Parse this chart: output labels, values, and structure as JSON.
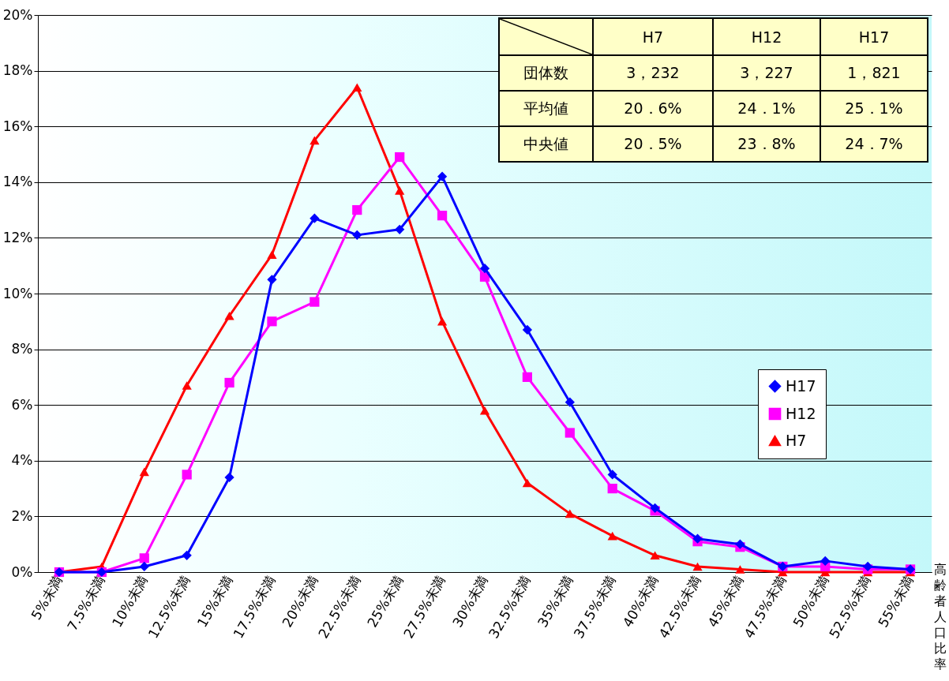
{
  "chart_data": {
    "type": "line",
    "xlabel": "高齢者人口比率",
    "categories": [
      "5%未満",
      "7.5%未満",
      "10%未満",
      "12.5%未満",
      "15%未満",
      "17.5%未満",
      "20%未満",
      "22.5%未満",
      "25%未満",
      "27.5%未満",
      "30%未満",
      "32.5%未満",
      "35%未満",
      "37.5%未満",
      "40%未満",
      "42.5%未満",
      "45%未満",
      "47.5%未満",
      "50%未満",
      "52.5%未満",
      "55%未満"
    ],
    "series": [
      {
        "name": "H17",
        "color": "#0000ff",
        "marker": "diamond",
        "values": [
          0,
          0,
          0.2,
          0.6,
          3.4,
          10.5,
          12.7,
          12.1,
          12.3,
          14.2,
          10.9,
          8.7,
          6.1,
          3.5,
          2.3,
          1.2,
          1.0,
          0.2,
          0.4,
          0.2,
          0.1
        ]
      },
      {
        "name": "H12",
        "color": "#ff00ff",
        "marker": "square",
        "values": [
          0,
          0,
          0.5,
          3.5,
          6.8,
          9.0,
          9.7,
          13.0,
          14.9,
          12.8,
          10.6,
          7.0,
          5.0,
          3.0,
          2.2,
          1.1,
          0.9,
          0.2,
          0.2,
          0.1,
          0.1
        ]
      },
      {
        "name": "H7",
        "color": "#ff0000",
        "marker": "triangle",
        "values": [
          0,
          0.2,
          3.6,
          6.7,
          9.2,
          11.4,
          15.5,
          17.4,
          13.7,
          9.0,
          5.8,
          3.2,
          2.1,
          1.3,
          0.6,
          0.2,
          0.1,
          0,
          0,
          0,
          0
        ]
      }
    ],
    "ylim": [
      0,
      20
    ],
    "yticks": [
      {
        "value": 0,
        "label": "0%"
      },
      {
        "value": 2,
        "label": "2%"
      },
      {
        "value": 4,
        "label": "4%"
      },
      {
        "value": 6,
        "label": "6%"
      },
      {
        "value": 8,
        "label": "8%"
      },
      {
        "value": 10,
        "label": "10%"
      },
      {
        "value": 12,
        "label": "12%"
      },
      {
        "value": 14,
        "label": "14%"
      },
      {
        "value": 16,
        "label": "16%"
      },
      {
        "value": 18,
        "label": "18%"
      },
      {
        "value": 20,
        "label": "20%"
      }
    ],
    "grid": "y",
    "legend": "right",
    "line_style": "solid",
    "annotations": [
      "H7",
      "H12",
      "H17",
      "団体数",
      "3，232",
      "3，227",
      "1，821",
      "平均値",
      "20．6%",
      "24．1%",
      "25．1%",
      "中央値",
      "20．5%",
      "23．8%",
      "24．7%"
    ]
  }
}
